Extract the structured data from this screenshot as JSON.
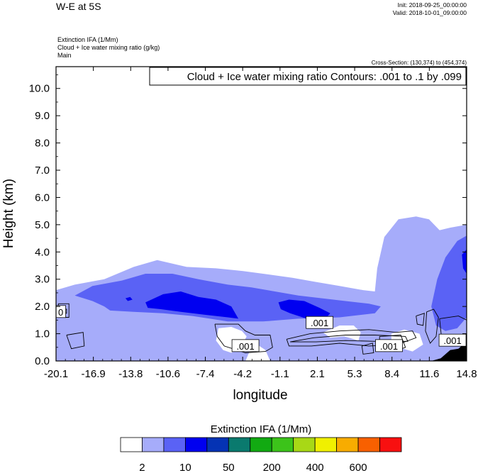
{
  "header": {
    "title": "W-E at 5S",
    "init": "Init: 2018-09-25_00:00:00",
    "valid": "Valid: 2018-10-01_09:00:00",
    "field1": "Extinction IFA   (1/Mm)",
    "field2": "Cloud + Ice water mixing ratio   (g/kg)",
    "field3": "Main",
    "cross_section": "Cross-Section: (130,374) to (454,374)"
  },
  "chart_data": {
    "type": "heatmap",
    "title": "W-E at 5S",
    "xlabel": "longitude",
    "ylabel": "Height (km)",
    "xlim": [
      -20.1,
      14.8
    ],
    "ylim": [
      0.0,
      10.8
    ],
    "xticks": [
      "-20.1",
      "-16.9",
      "-13.8",
      "-10.6",
      "-7.4",
      "-4.2",
      "-1.1",
      "2.1",
      "5.3",
      "8.4",
      "11.6",
      "14.8"
    ],
    "yticks": [
      "0.0",
      "1.0",
      "2.0",
      "3.0",
      "4.0",
      "5.0",
      "6.0",
      "7.0",
      "8.0",
      "9.0",
      "10.0"
    ],
    "contour_info": "Cloud + Ice water mixing ratio Contours: .001 to .1 by .099",
    "contour_labels": [
      {
        "text": ".001",
        "x": 2.3,
        "y": 1.4
      },
      {
        "text": ".001",
        "x": -4.0,
        "y": 0.55
      },
      {
        "text": ".001",
        "x": 8.2,
        "y": 0.55
      },
      {
        "text": ".001",
        "x": 13.6,
        "y": 0.75
      },
      {
        "text": "0",
        "x": -19.7,
        "y": 1.8
      }
    ],
    "regions": [
      {
        "name": "extinction-level-1",
        "level": 1,
        "points": [
          [
            -20.1,
            2.6
          ],
          [
            -18.5,
            2.8
          ],
          [
            -16.0,
            3.0
          ],
          [
            -13.5,
            3.45
          ],
          [
            -11.5,
            3.7
          ],
          [
            -9.0,
            3.45
          ],
          [
            -6.5,
            3.4
          ],
          [
            -4.2,
            3.3
          ],
          [
            -2.5,
            3.2
          ],
          [
            0.0,
            3.05
          ],
          [
            2.0,
            2.9
          ],
          [
            4.0,
            2.75
          ],
          [
            6.0,
            2.6
          ],
          [
            7.0,
            2.55
          ],
          [
            7.2,
            3.4
          ],
          [
            7.8,
            4.55
          ],
          [
            9.0,
            5.2
          ],
          [
            10.5,
            5.3
          ],
          [
            11.6,
            5.2
          ],
          [
            12.5,
            4.8
          ],
          [
            13.5,
            4.9
          ],
          [
            14.8,
            5.0
          ],
          [
            14.8,
            0.0
          ],
          [
            -20.1,
            0.0
          ]
        ]
      },
      {
        "name": "extinction-level-2",
        "level": 2,
        "points": [
          [
            -18.5,
            2.4
          ],
          [
            -17.0,
            2.75
          ],
          [
            -14.5,
            2.95
          ],
          [
            -12.5,
            3.2
          ],
          [
            -10.2,
            3.2
          ],
          [
            -8.0,
            3.0
          ],
          [
            -5.5,
            2.8
          ],
          [
            -3.5,
            2.7
          ],
          [
            -1.5,
            2.55
          ],
          [
            0.5,
            2.4
          ],
          [
            2.5,
            2.3
          ],
          [
            4.5,
            2.2
          ],
          [
            6.5,
            2.1
          ],
          [
            7.5,
            2.0
          ],
          [
            7.0,
            1.75
          ],
          [
            4.0,
            1.6
          ],
          [
            0.5,
            1.55
          ],
          [
            -2.5,
            1.45
          ],
          [
            -5.5,
            1.45
          ],
          [
            -8.5,
            1.65
          ],
          [
            -11.0,
            1.75
          ],
          [
            -13.5,
            1.8
          ],
          [
            -15.5,
            1.85
          ],
          [
            -16.0,
            2.0
          ],
          [
            -17.0,
            2.2
          ]
        ]
      },
      {
        "name": "extinction-level-2-east",
        "level": 2,
        "points": [
          [
            11.8,
            2.0
          ],
          [
            12.3,
            3.0
          ],
          [
            13.0,
            3.8
          ],
          [
            14.0,
            4.4
          ],
          [
            14.8,
            4.6
          ],
          [
            14.8,
            1.6
          ],
          [
            14.0,
            1.2
          ],
          [
            13.0,
            1.1
          ],
          [
            12.2,
            1.3
          ]
        ]
      },
      {
        "name": "extinction-level-3",
        "level": 3,
        "points": [
          [
            -12.5,
            2.15
          ],
          [
            -11.0,
            2.45
          ],
          [
            -9.5,
            2.55
          ],
          [
            -8.0,
            2.35
          ],
          [
            -6.5,
            2.25
          ],
          [
            -5.2,
            2.0
          ],
          [
            -4.6,
            1.55
          ],
          [
            -5.5,
            1.6
          ],
          [
            -7.5,
            1.7
          ],
          [
            -9.5,
            1.8
          ],
          [
            -11.2,
            1.9
          ],
          [
            -12.3,
            1.95
          ]
        ]
      },
      {
        "name": "extinction-level-3-b",
        "level": 3,
        "points": [
          [
            -1.2,
            2.15
          ],
          [
            -0.3,
            2.25
          ],
          [
            1.0,
            2.2
          ],
          [
            2.3,
            1.95
          ],
          [
            3.2,
            1.75
          ],
          [
            2.8,
            1.55
          ],
          [
            1.2,
            1.55
          ],
          [
            -0.2,
            1.75
          ],
          [
            -1.0,
            1.9
          ]
        ]
      },
      {
        "name": "extinction-level-3-c",
        "level": 3,
        "points": [
          [
            -14.2,
            2.3
          ],
          [
            -13.8,
            2.35
          ],
          [
            -13.6,
            2.25
          ],
          [
            -14.0,
            2.2
          ]
        ]
      },
      {
        "name": "extinction-level-3-d",
        "level": 3,
        "points": [
          [
            14.4,
            3.9
          ],
          [
            14.8,
            4.1
          ],
          [
            14.8,
            3.2
          ],
          [
            14.5,
            3.4
          ]
        ]
      }
    ],
    "gaps": [
      {
        "name": "clear-gap-west",
        "points": [
          [
            -6.3,
            1.2
          ],
          [
            -5.2,
            1.25
          ],
          [
            -4.3,
            1.1
          ],
          [
            -3.9,
            0.9
          ],
          [
            -4.4,
            0.5
          ],
          [
            -5.2,
            0.3
          ],
          [
            -5.9,
            0.4
          ],
          [
            -6.5,
            0.75
          ]
        ]
      },
      {
        "name": "clear-gap-bottom",
        "points": [
          [
            -4.0,
            0.0
          ],
          [
            -1.9,
            0.0
          ],
          [
            -2.3,
            0.4
          ],
          [
            -3.0,
            0.6
          ],
          [
            -3.6,
            0.4
          ]
        ]
      },
      {
        "name": "clear-gap-mid",
        "points": [
          [
            2.6,
            1.05
          ],
          [
            4.0,
            1.3
          ],
          [
            5.2,
            1.3
          ],
          [
            5.8,
            1.05
          ],
          [
            5.6,
            0.75
          ],
          [
            4.4,
            0.9
          ],
          [
            3.2,
            0.85
          ]
        ]
      },
      {
        "name": "clear-gap-east",
        "points": [
          [
            8.4,
            1.0
          ],
          [
            9.5,
            1.15
          ],
          [
            10.8,
            1.0
          ],
          [
            11.1,
            0.6
          ],
          [
            10.2,
            0.35
          ],
          [
            9.0,
            0.5
          ],
          [
            8.4,
            0.75
          ]
        ]
      }
    ],
    "terrain": [
      [
        11.8,
        0.0
      ],
      [
        12.6,
        0.1
      ],
      [
        13.4,
        0.4
      ],
      [
        14.1,
        0.45
      ],
      [
        14.5,
        0.6
      ],
      [
        14.8,
        0.7
      ],
      [
        14.8,
        0.0
      ]
    ],
    "contour_lines": [
      [
        [
          -6.6,
          1.35
        ],
        [
          -4.6,
          1.35
        ],
        [
          -4.0,
          1.1
        ],
        [
          -3.2,
          0.95
        ],
        [
          -1.9,
          0.95
        ],
        [
          -1.7,
          0.5
        ],
        [
          -2.3,
          0.35
        ],
        [
          -4.0,
          0.3
        ],
        [
          -5.8,
          0.55
        ],
        [
          -6.4,
          0.9
        ],
        [
          -6.6,
          1.35
        ]
      ],
      [
        [
          -0.5,
          0.8
        ],
        [
          1.5,
          1.0
        ],
        [
          4.0,
          1.1
        ],
        [
          6.5,
          1.15
        ],
        [
          8.8,
          1.05
        ],
        [
          10.2,
          1.1
        ],
        [
          10.5,
          0.85
        ],
        [
          8.9,
          0.6
        ],
        [
          6.5,
          0.55
        ],
        [
          4.0,
          0.65
        ],
        [
          1.6,
          0.55
        ],
        [
          -0.3,
          0.55
        ],
        [
          -0.5,
          0.8
        ]
      ],
      [
        [
          -0.2,
          0.7
        ],
        [
          1.8,
          0.85
        ],
        [
          4.5,
          0.95
        ],
        [
          7.0,
          0.95
        ],
        [
          9.6,
          0.9
        ],
        [
          9.8,
          0.72
        ],
        [
          7.0,
          0.72
        ],
        [
          4.5,
          0.75
        ],
        [
          2.0,
          0.7
        ],
        [
          -0.2,
          0.7
        ]
      ],
      [
        [
          7.4,
          0.9
        ],
        [
          9.2,
          0.95
        ],
        [
          9.6,
          0.5
        ],
        [
          8.6,
          0.35
        ],
        [
          7.4,
          0.5
        ],
        [
          7.4,
          0.9
        ]
      ],
      [
        [
          -19.2,
          0.95
        ],
        [
          -17.8,
          1.05
        ],
        [
          -17.7,
          0.55
        ],
        [
          -18.8,
          0.45
        ],
        [
          -19.2,
          0.95
        ]
      ],
      [
        [
          -19.9,
          2.1
        ],
        [
          -19.0,
          2.1
        ],
        [
          -19.0,
          1.6
        ],
        [
          -19.9,
          1.6
        ],
        [
          -19.9,
          2.1
        ]
      ],
      [
        [
          -19.7,
          1.9
        ],
        [
          -19.2,
          1.9
        ],
        [
          -19.2,
          1.75
        ],
        [
          -19.7,
          1.75
        ],
        [
          -19.7,
          1.9
        ]
      ],
      [
        [
          11.4,
          1.8
        ],
        [
          12.0,
          1.9
        ],
        [
          12.4,
          1.6
        ],
        [
          12.2,
          0.9
        ],
        [
          11.7,
          0.65
        ],
        [
          11.3,
          1.1
        ],
        [
          11.4,
          1.8
        ]
      ],
      [
        [
          12.5,
          1.55
        ],
        [
          14.1,
          1.65
        ],
        [
          14.8,
          1.5
        ],
        [
          14.8,
          0.8
        ],
        [
          13.7,
          0.55
        ],
        [
          12.7,
          0.7
        ],
        [
          12.5,
          1.55
        ]
      ],
      [
        [
          10.5,
          1.65
        ],
        [
          11.2,
          1.75
        ],
        [
          11.1,
          1.3
        ],
        [
          10.6,
          1.35
        ],
        [
          10.5,
          1.65
        ]
      ],
      [
        [
          5.9,
          0.55
        ],
        [
          6.8,
          0.65
        ],
        [
          6.9,
          0.3
        ],
        [
          6.0,
          0.25
        ],
        [
          5.9,
          0.55
        ]
      ]
    ],
    "colorbar": {
      "title": "Extinction IFA  (1/Mm)",
      "colors": [
        "#ffffff",
        "#a6acfa",
        "#5a62f5",
        "#0000f0",
        "#0533b4",
        "#0a7a6e",
        "#12aa12",
        "#3cc31a",
        "#a8d816",
        "#f0f000",
        "#f8ac00",
        "#f86000",
        "#f81010"
      ],
      "tick_labels": [
        "2",
        "10",
        "50",
        "200",
        "400",
        "600"
      ]
    }
  }
}
